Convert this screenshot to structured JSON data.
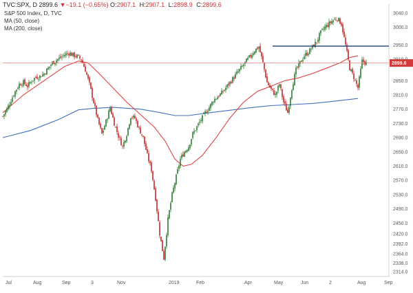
{
  "header": {
    "symbol": "TVC:SPX, D",
    "last": "2899.6",
    "change": "▼−19.1 (−0.65%)",
    "open_label": "O:",
    "open": "2907.1",
    "high_label": "H:",
    "high": "2907.1",
    "low_label": "L:",
    "low": "2898.9",
    "close_label": "C:",
    "close": "2899.6"
  },
  "subtitle": "S&P 500 Index, D, TVC",
  "legend": [
    "MA (50, close)",
    "MA (200, close)"
  ],
  "colors": {
    "up": "#2e7d32",
    "down": "#c62828",
    "ma50": "#e04040",
    "ma200": "#3f6fbf",
    "resistance": "#1f3f7a",
    "price_line": "#e88080",
    "price_tag": "#d33a3a"
  },
  "chart_data": {
    "type": "candlestick",
    "x_tick_labels": [
      "Jul",
      "Aug",
      "Sep",
      "3",
      "Nov",
      "2019",
      "Feb",
      "Apr",
      "May",
      "Jun",
      "2",
      "Aug",
      "Sep"
    ],
    "y_tick_labels": [
      "3040.0",
      "3000.0",
      "2950.0",
      "2910.0",
      "2850.0",
      "2810.0",
      "2770.0",
      "2730.0",
      "2690.0",
      "2650.0",
      "2610.0",
      "2570.0",
      "2530.0",
      "2490.0",
      "2450.0",
      "2420.0",
      "2392.0",
      "2364.0",
      "2338.0",
      "2314.0"
    ],
    "y_ticks": [
      3040,
      3000,
      2950,
      2910,
      2850,
      2810,
      2770,
      2730,
      2690,
      2650,
      2610,
      2570,
      2530,
      2490,
      2450,
      2420,
      2392,
      2364,
      2338,
      2314
    ],
    "ylim": [
      2300,
      3065
    ],
    "last_price": 2899.6,
    "last_price_label": "2899.6",
    "resistance_level": 2947,
    "price_path": [
      [
        0,
        2750
      ],
      [
        3,
        2770
      ],
      [
        6,
        2795
      ],
      [
        9,
        2820
      ],
      [
        12,
        2840
      ],
      [
        15,
        2845
      ],
      [
        18,
        2835
      ],
      [
        21,
        2850
      ],
      [
        24,
        2860
      ],
      [
        27,
        2862
      ],
      [
        30,
        2870
      ],
      [
        33,
        2885
      ],
      [
        36,
        2900
      ],
      [
        39,
        2908
      ],
      [
        42,
        2915
      ],
      [
        45,
        2923
      ],
      [
        48,
        2928
      ],
      [
        51,
        2922
      ],
      [
        54,
        2918
      ],
      [
        57,
        2910
      ],
      [
        60,
        2880
      ],
      [
        63,
        2840
      ],
      [
        66,
        2790
      ],
      [
        69,
        2740
      ],
      [
        72,
        2700
      ],
      [
        75,
        2735
      ],
      [
        78,
        2775
      ],
      [
        81,
        2730
      ],
      [
        84,
        2695
      ],
      [
        87,
        2665
      ],
      [
        90,
        2700
      ],
      [
        93,
        2750
      ],
      [
        96,
        2745
      ],
      [
        99,
        2715
      ],
      [
        102,
        2690
      ],
      [
        105,
        2640
      ],
      [
        108,
        2600
      ],
      [
        111,
        2520
      ],
      [
        114,
        2420
      ],
      [
        117,
        2351
      ],
      [
        120,
        2460
      ],
      [
        123,
        2530
      ],
      [
        126,
        2580
      ],
      [
        129,
        2630
      ],
      [
        132,
        2650
      ],
      [
        135,
        2665
      ],
      [
        138,
        2700
      ],
      [
        141,
        2720
      ],
      [
        144,
        2740
      ],
      [
        147,
        2760
      ],
      [
        150,
        2775
      ],
      [
        153,
        2795
      ],
      [
        156,
        2805
      ],
      [
        159,
        2815
      ],
      [
        162,
        2830
      ],
      [
        165,
        2845
      ],
      [
        168,
        2860
      ],
      [
        171,
        2875
      ],
      [
        174,
        2890
      ],
      [
        177,
        2905
      ],
      [
        180,
        2920
      ],
      [
        183,
        2935
      ],
      [
        186,
        2945
      ],
      [
        189,
        2900
      ],
      [
        192,
        2845
      ],
      [
        195,
        2825
      ],
      [
        198,
        2810
      ],
      [
        201,
        2840
      ],
      [
        204,
        2790
      ],
      [
        207,
        2760
      ],
      [
        210,
        2830
      ],
      [
        213,
        2880
      ],
      [
        216,
        2900
      ],
      [
        219,
        2920
      ],
      [
        222,
        2930
      ],
      [
        225,
        2945
      ],
      [
        228,
        2960
      ],
      [
        231,
        2985
      ],
      [
        234,
        3000
      ],
      [
        237,
        3010
      ],
      [
        240,
        3020
      ],
      [
        243,
        3025
      ],
      [
        246,
        3010
      ],
      [
        249,
        2950
      ],
      [
        252,
        2885
      ],
      [
        255,
        2860
      ],
      [
        258,
        2830
      ],
      [
        261,
        2905
      ],
      [
        264,
        2899.6
      ]
    ],
    "ma50": [
      [
        0,
        2760
      ],
      [
        15,
        2810
      ],
      [
        30,
        2850
      ],
      [
        45,
        2890
      ],
      [
        55,
        2905
      ],
      [
        62,
        2900
      ],
      [
        70,
        2870
      ],
      [
        80,
        2830
      ],
      [
        90,
        2790
      ],
      [
        100,
        2755
      ],
      [
        110,
        2720
      ],
      [
        118,
        2680
      ],
      [
        125,
        2630
      ],
      [
        131,
        2610
      ],
      [
        137,
        2615
      ],
      [
        145,
        2640
      ],
      [
        155,
        2690
      ],
      [
        165,
        2745
      ],
      [
        175,
        2790
      ],
      [
        185,
        2820
      ],
      [
        195,
        2835
      ],
      [
        205,
        2850
      ],
      [
        215,
        2858
      ],
      [
        225,
        2870
      ],
      [
        235,
        2885
      ],
      [
        245,
        2900
      ],
      [
        252,
        2915
      ],
      [
        258,
        2920
      ]
    ],
    "ma200": [
      [
        0,
        2690
      ],
      [
        20,
        2710
      ],
      [
        40,
        2740
      ],
      [
        55,
        2768
      ],
      [
        65,
        2772
      ],
      [
        80,
        2775
      ],
      [
        100,
        2770
      ],
      [
        115,
        2760
      ],
      [
        125,
        2752
      ],
      [
        135,
        2752
      ],
      [
        150,
        2760
      ],
      [
        165,
        2767
      ],
      [
        180,
        2774
      ],
      [
        195,
        2780
      ],
      [
        210,
        2783
      ],
      [
        225,
        2786
      ],
      [
        240,
        2792
      ],
      [
        258,
        2800
      ]
    ]
  }
}
